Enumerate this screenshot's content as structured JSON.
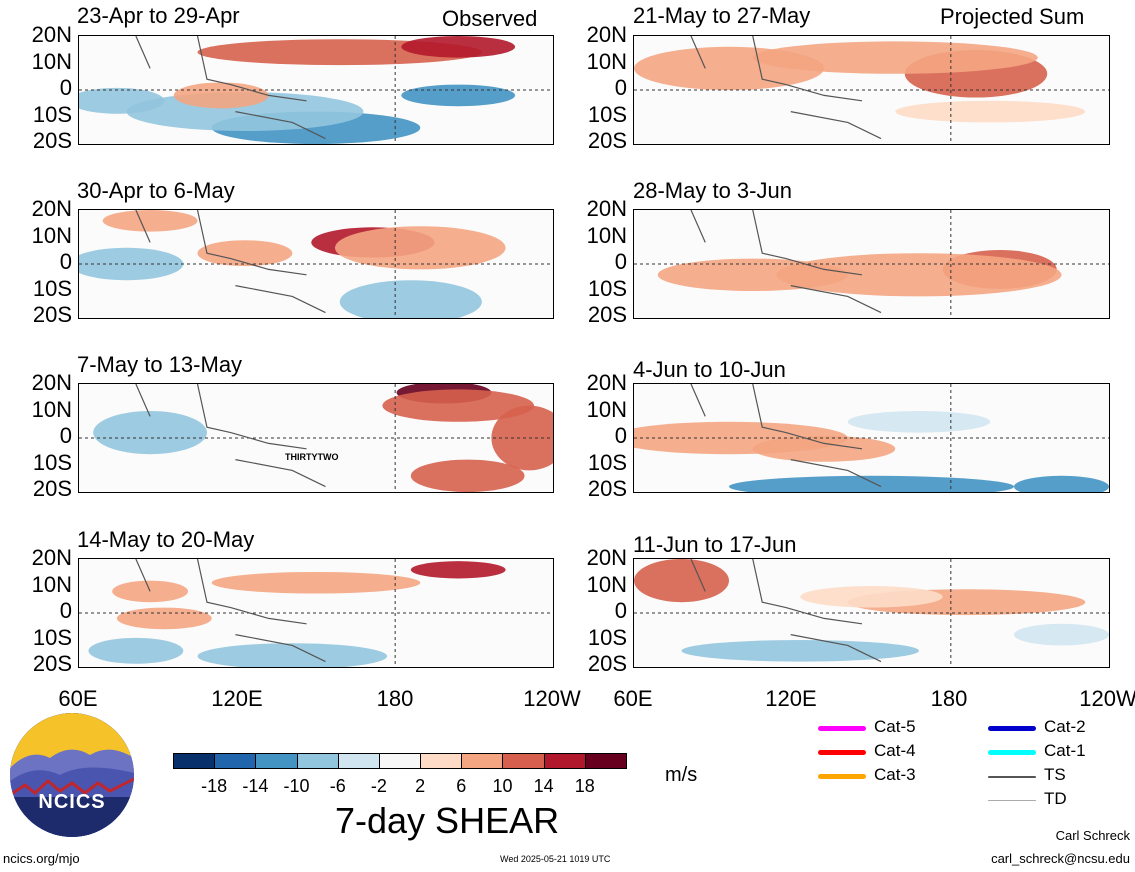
{
  "header": {
    "left_label": "Observed",
    "right_label": "Projected Sum"
  },
  "chart_data": {
    "type": "heatmap",
    "title": "7-day SHEAR",
    "units": "m/s",
    "x_ticks": [
      "60E",
      "120E",
      "180",
      "120W"
    ],
    "y_ticks": [
      "20N",
      "10N",
      "0",
      "10S",
      "20S"
    ],
    "panels_observed": [
      {
        "title": "23-Apr to 29-Apr"
      },
      {
        "title": "30-Apr to 6-May"
      },
      {
        "title": "7-May to 13-May",
        "annotation": "THIRTYTWO"
      },
      {
        "title": "14-May to 20-May"
      }
    ],
    "panels_projected": [
      {
        "title": "21-May to 27-May"
      },
      {
        "title": "28-May to 3-Jun"
      },
      {
        "title": "4-Jun to 10-Jun"
      },
      {
        "title": "11-Jun to 17-Jun"
      }
    ],
    "colorbar": {
      "labels": [
        "-18",
        "-14",
        "-10",
        "-6",
        "-2",
        "2",
        "6",
        "10",
        "14",
        "18"
      ],
      "colors": [
        "#08306b",
        "#2166ac",
        "#4393c3",
        "#92c5de",
        "#d1e5f0",
        "#f7f7f7",
        "#fddbc7",
        "#f4a582",
        "#d6604d",
        "#b2182b",
        "#67001f"
      ]
    }
  },
  "legend": {
    "items": [
      {
        "label": "Cat-5",
        "color": "#ff00ff"
      },
      {
        "label": "Cat-4",
        "color": "#ff0000"
      },
      {
        "label": "Cat-3",
        "color": "#ffa500"
      },
      {
        "label": "Cat-2",
        "color": "#0000cc"
      },
      {
        "label": "Cat-1",
        "color": "#00ffff"
      },
      {
        "label": "TS",
        "color": "#555555"
      },
      {
        "label": "TD",
        "color": "#aaaaaa"
      }
    ]
  },
  "logo": {
    "text": "NCICS"
  },
  "footer": {
    "url": "ncics.org/mjo",
    "timestamp": "Wed 2025-05-21 1019 UTC",
    "author": "Carl Schreck",
    "email": "carl_schreck@ncsu.edu"
  }
}
